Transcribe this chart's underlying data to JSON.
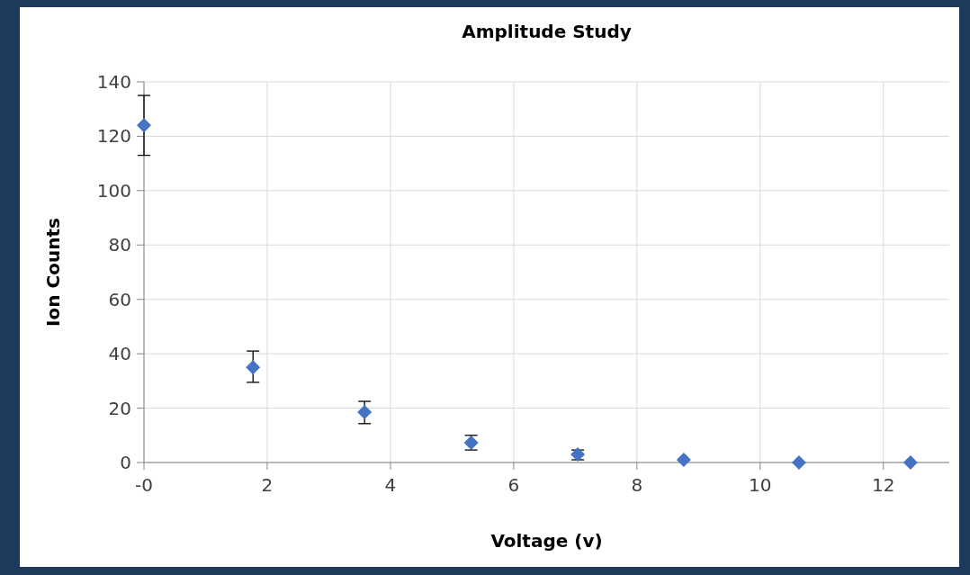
{
  "chart_data": {
    "type": "scatter",
    "title": "Amplitude Study",
    "xlabel": "Voltage (v)",
    "ylabel": "Ion Counts",
    "x": [
      0,
      1.77,
      3.58,
      5.31,
      7.04,
      8.76,
      10.63,
      12.44
    ],
    "series": [
      {
        "color": "#4472c4",
        "values": [
          124,
          35,
          18.5,
          7.3,
          3,
          1,
          0,
          0
        ],
        "errors": [
          [
            113,
            135
          ],
          [
            29.5,
            41
          ],
          [
            14.3,
            22.5
          ],
          [
            4.6,
            10
          ],
          [
            1,
            4.6
          ],
          null,
          null,
          null
        ]
      }
    ],
    "xlim": [
      0,
      13.07
    ],
    "xticks": [
      {
        "value": 0,
        "label": "-0"
      },
      2,
      4,
      6,
      8,
      10,
      12
    ],
    "ylim": [
      0,
      140
    ],
    "yticks": [
      0,
      20,
      40,
      60,
      80,
      100,
      120,
      140
    ],
    "grid": true,
    "marker": "diamond"
  }
}
